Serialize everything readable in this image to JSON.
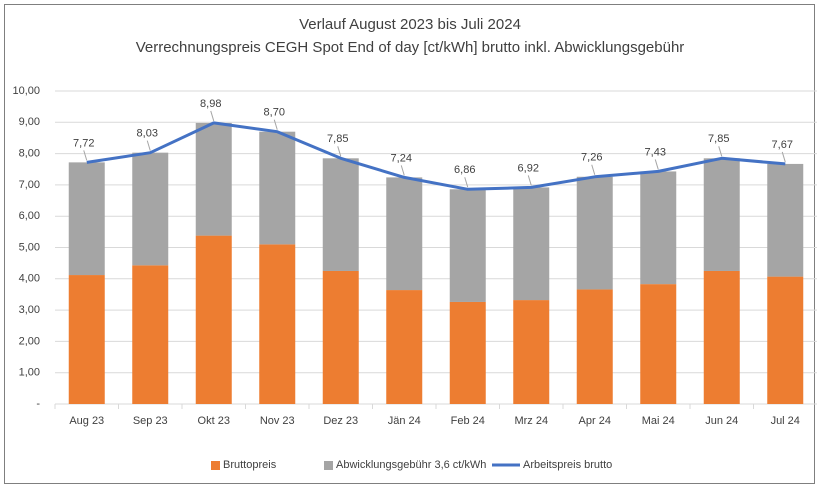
{
  "chart_data": {
    "type": "bar",
    "stacked": true,
    "title": "Verlauf August 2023 bis Juli 2024",
    "subtitle": "Verrechnungspreis CEGH Spot End of day [ct/kWh] brutto inkl. Abwicklungsgebühr",
    "categories": [
      "Aug 23",
      "Sep 23",
      "Okt 23",
      "Nov 23",
      "Dez 23",
      "Jän 24",
      "Feb 24",
      "Mrz 24",
      "Apr 24",
      "Mai 24",
      "Jun 24",
      "Jul 24"
    ],
    "series": [
      {
        "name": "Bruttopreis",
        "type": "bar",
        "color": "#ed7d31",
        "values": [
          4.12,
          4.43,
          5.38,
          5.1,
          4.25,
          3.64,
          3.26,
          3.32,
          3.66,
          3.83,
          4.25,
          4.07
        ]
      },
      {
        "name": "Abwicklungsgebühr 3,6 ct/kWh",
        "type": "bar",
        "color": "#a5a5a5",
        "values": [
          3.6,
          3.6,
          3.6,
          3.6,
          3.6,
          3.6,
          3.6,
          3.6,
          3.6,
          3.6,
          3.6,
          3.6
        ]
      },
      {
        "name": "Arbeitspreis brutto",
        "type": "line",
        "color": "#4472c4",
        "values": [
          7.72,
          8.03,
          8.98,
          8.7,
          7.85,
          7.24,
          6.86,
          6.92,
          7.26,
          7.43,
          7.85,
          7.67
        ],
        "value_labels": [
          "7,72",
          "8,03",
          "8,98",
          "8,70",
          "7,85",
          "7,24",
          "6,86",
          "6,92",
          "7,26",
          "7,43",
          "7,85",
          "7,67"
        ]
      }
    ],
    "ylim": [
      0,
      10
    ],
    "yticks": [
      {
        "value": 0,
        "label": "-"
      },
      {
        "value": 1,
        "label": "1,00"
      },
      {
        "value": 2,
        "label": "2,00"
      },
      {
        "value": 3,
        "label": "3,00"
      },
      {
        "value": 4,
        "label": "4,00"
      },
      {
        "value": 5,
        "label": "5,00"
      },
      {
        "value": 6,
        "label": "6,00"
      },
      {
        "value": 7,
        "label": "7,00"
      },
      {
        "value": 8,
        "label": "8,00"
      },
      {
        "value": 9,
        "label": "9,00"
      },
      {
        "value": 10,
        "label": "10,00"
      }
    ],
    "grid": true,
    "legend": "bottom"
  }
}
